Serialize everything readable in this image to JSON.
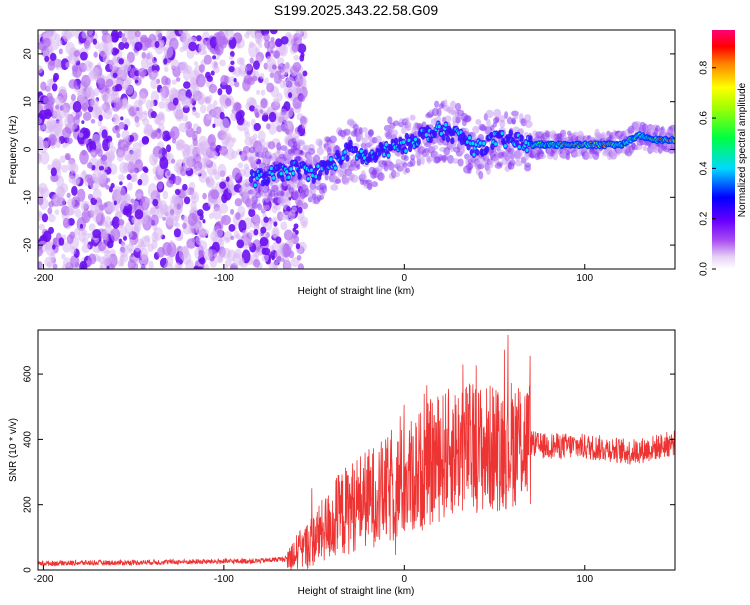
{
  "title": "S199.2025.343.22.58.G09",
  "chart_data": [
    {
      "type": "heatmap",
      "title": "S199.2025.343.22.58.G09",
      "xlabel": "Height of straight line (km)",
      "ylabel": "Frequency (Hz)",
      "xlim": [
        -203,
        150
      ],
      "ylim": [
        -25,
        25
      ],
      "xticks": [
        -200,
        -100,
        0,
        100
      ],
      "yticks": [
        -20,
        -10,
        0,
        10,
        20
      ],
      "colorbar": {
        "label": "Normalized spectral amplitude",
        "range": [
          0,
          0.95
        ],
        "ticks": [
          0.0,
          0.2,
          0.4,
          0.6,
          0.8
        ]
      },
      "ridge_frequency": {
        "x": [
          -80,
          -70,
          -60,
          -50,
          -40,
          -30,
          -20,
          -10,
          0,
          10,
          20,
          30,
          40,
          50,
          60,
          70,
          80,
          90,
          100,
          110,
          120,
          130,
          140,
          150
        ],
        "y": [
          -6,
          -5,
          -4,
          -5,
          -3,
          0,
          -2,
          0,
          1,
          3,
          4,
          3,
          0,
          2,
          2,
          1,
          1,
          1,
          1,
          1,
          1,
          3,
          2,
          2
        ]
      },
      "noise_extent_x": [
        -203,
        -65
      ]
    },
    {
      "type": "line",
      "xlabel": "Height of straight line (km)",
      "ylabel": "SNR (10 * v/v)",
      "xlim": [
        -203,
        150
      ],
      "ylim": [
        0,
        735
      ],
      "xticks": [
        -200,
        -100,
        0,
        100
      ],
      "yticks": [
        0,
        200,
        400,
        600
      ],
      "color": "#ee3333",
      "series": [
        {
          "name": "SNR",
          "x": [
            -203,
            -180,
            -160,
            -140,
            -120,
            -100,
            -80,
            -65,
            -55,
            -45,
            -35,
            -25,
            -15,
            -5,
            5,
            15,
            25,
            35,
            45,
            55,
            65,
            75,
            85,
            95,
            105,
            115,
            125,
            135,
            150
          ],
          "y": [
            20,
            22,
            22,
            24,
            25,
            26,
            28,
            35,
            70,
            120,
            170,
            210,
            230,
            250,
            290,
            330,
            360,
            380,
            370,
            380,
            400,
            380,
            380,
            380,
            375,
            370,
            360,
            370,
            390
          ]
        }
      ]
    }
  ]
}
